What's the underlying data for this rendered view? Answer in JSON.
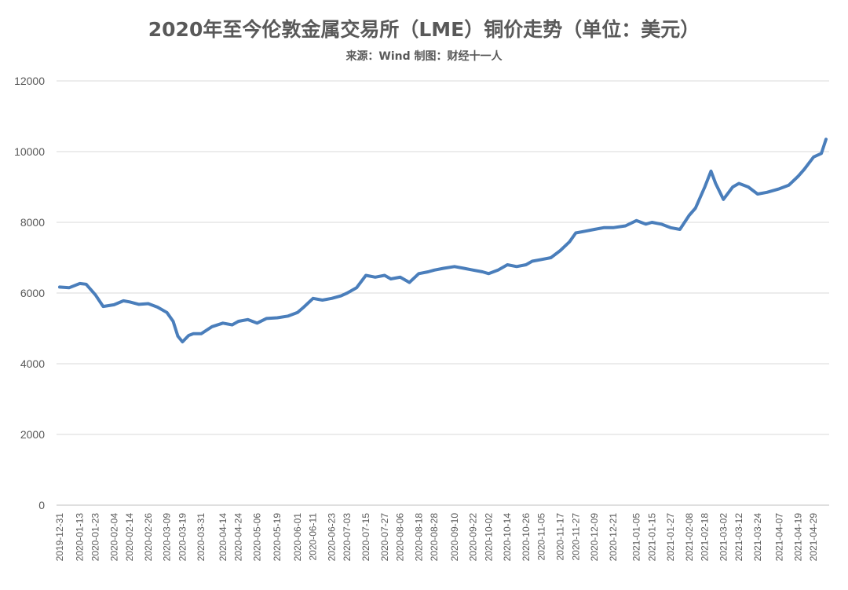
{
  "chart_data": {
    "type": "line",
    "title": "2020年至今伦敦金属交易所（LME）铜价走势（单位：美元）",
    "subtitle": "来源：Wind 制图：财经十一人",
    "ylim": [
      0,
      12000
    ],
    "yticks": [
      0,
      2000,
      4000,
      6000,
      8000,
      10000,
      12000
    ],
    "grid": true,
    "legend": "none",
    "line_color": "#4a7ebb",
    "x_ticks": [
      "2019-12-31",
      "2020-01-13",
      "2020-01-23",
      "2020-02-04",
      "2020-02-14",
      "2020-02-26",
      "2020-03-09",
      "2020-03-19",
      "2020-03-31",
      "2020-04-14",
      "2020-04-24",
      "2020-05-06",
      "2020-05-19",
      "2020-06-01",
      "2020-06-11",
      "2020-06-23",
      "2020-07-03",
      "2020-07-15",
      "2020-07-27",
      "2020-08-06",
      "2020-08-18",
      "2020-08-28",
      "2020-09-10",
      "2020-09-22",
      "2020-10-02",
      "2020-10-14",
      "2020-10-26",
      "2020-11-05",
      "2020-11-17",
      "2020-11-27",
      "2020-12-09",
      "2020-12-21",
      "2021-01-05",
      "2021-01-15",
      "2021-01-27",
      "2021-02-08",
      "2021-02-18",
      "2021-03-02",
      "2021-03-12",
      "2021-03-24",
      "2021-04-07",
      "2021-04-19",
      "2021-04-29"
    ],
    "series": [
      {
        "x": [
          "2019-12-31",
          "2020-01-06",
          "2020-01-13",
          "2020-01-17",
          "2020-01-23",
          "2020-01-28",
          "2020-02-04",
          "2020-02-10",
          "2020-02-14",
          "2020-02-20",
          "2020-02-26",
          "2020-03-03",
          "2020-03-09",
          "2020-03-13",
          "2020-03-16",
          "2020-03-19",
          "2020-03-23",
          "2020-03-26",
          "2020-03-31",
          "2020-04-07",
          "2020-04-14",
          "2020-04-20",
          "2020-04-24",
          "2020-04-30",
          "2020-05-06",
          "2020-05-12",
          "2020-05-19",
          "2020-05-26",
          "2020-06-01",
          "2020-06-05",
          "2020-06-11",
          "2020-06-17",
          "2020-06-23",
          "2020-06-29",
          "2020-07-03",
          "2020-07-09",
          "2020-07-15",
          "2020-07-21",
          "2020-07-27",
          "2020-07-31",
          "2020-08-06",
          "2020-08-12",
          "2020-08-18",
          "2020-08-24",
          "2020-08-28",
          "2020-09-03",
          "2020-09-10",
          "2020-09-16",
          "2020-09-22",
          "2020-09-28",
          "2020-10-02",
          "2020-10-08",
          "2020-10-14",
          "2020-10-20",
          "2020-10-26",
          "2020-10-30",
          "2020-11-05",
          "2020-11-11",
          "2020-11-17",
          "2020-11-23",
          "2020-11-27",
          "2020-12-03",
          "2020-12-09",
          "2020-12-15",
          "2020-12-21",
          "2020-12-29",
          "2021-01-05",
          "2021-01-11",
          "2021-01-15",
          "2021-01-21",
          "2021-01-27",
          "2021-02-02",
          "2021-02-08",
          "2021-02-12",
          "2021-02-18",
          "2021-02-22",
          "2021-02-25",
          "2021-03-02",
          "2021-03-08",
          "2021-03-12",
          "2021-03-18",
          "2021-03-24",
          "2021-03-30",
          "2021-04-07",
          "2021-04-13",
          "2021-04-19",
          "2021-04-23",
          "2021-04-29",
          "2021-05-04",
          "2021-05-07"
        ],
        "values": [
          6170,
          6150,
          6270,
          6250,
          5950,
          5620,
          5670,
          5780,
          5750,
          5680,
          5700,
          5600,
          5450,
          5200,
          4780,
          4620,
          4800,
          4850,
          4850,
          5050,
          5150,
          5100,
          5200,
          5250,
          5150,
          5280,
          5300,
          5350,
          5450,
          5600,
          5850,
          5800,
          5850,
          5920,
          6000,
          6150,
          6500,
          6450,
          6500,
          6400,
          6450,
          6300,
          6550,
          6600,
          6650,
          6700,
          6750,
          6700,
          6650,
          6600,
          6550,
          6650,
          6800,
          6750,
          6800,
          6900,
          6950,
          7000,
          7200,
          7450,
          7700,
          7750,
          7800,
          7850,
          7850,
          7900,
          8050,
          7950,
          8000,
          7950,
          7850,
          7800,
          8200,
          8400,
          9000,
          9450,
          9100,
          8650,
          9000,
          9100,
          9000,
          8800,
          8850,
          8950,
          9050,
          9300,
          9500,
          9850,
          9950,
          10350
        ]
      }
    ]
  }
}
